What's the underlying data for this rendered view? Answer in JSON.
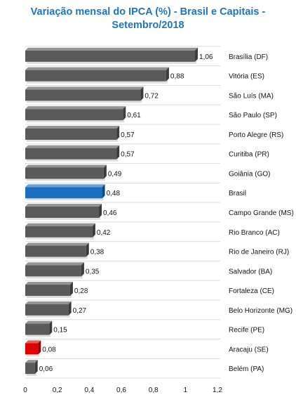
{
  "chart_data": {
    "type": "bar",
    "orientation": "horizontal",
    "title_line1": "Variação mensal do IPCA (%) - Brasil e Capitais -",
    "title_line2": "Setembro/2018",
    "categories": [
      "Brasília (DF)",
      "Vitória (ES)",
      "São Luís (MA)",
      "São Paulo (SP)",
      "Porto Alegre (RS)",
      "Curitiba (PR)",
      "Goiânia (GO)",
      "Brasil",
      "Campo Grande (MS)",
      "Rio Branco (AC)",
      "Rio de Janeiro (RJ)",
      "Salvador (BA)",
      "Fortaleza (CE)",
      "Belo Horizonte (MG)",
      "Recife (PE)",
      "Aracaju (SE)",
      "Belém (PA)"
    ],
    "values": [
      1.06,
      0.88,
      0.72,
      0.61,
      0.57,
      0.57,
      0.49,
      0.48,
      0.46,
      0.42,
      0.38,
      0.35,
      0.28,
      0.27,
      0.15,
      0.08,
      0.06
    ],
    "value_labels": [
      "1,06",
      "0,88",
      "0,72",
      "0,61",
      "0,57",
      "0,57",
      "0,49",
      "0,48",
      "0,46",
      "0,42",
      "0,38",
      "0,35",
      "0,28",
      "0,27",
      "0,15",
      "0,08",
      "0,06"
    ],
    "bar_colors": [
      "#5a5a5a",
      "#5a5a5a",
      "#5a5a5a",
      "#5a5a5a",
      "#5a5a5a",
      "#5a5a5a",
      "#5a5a5a",
      "#1a6fc0",
      "#5a5a5a",
      "#5a5a5a",
      "#5a5a5a",
      "#5a5a5a",
      "#5a5a5a",
      "#5a5a5a",
      "#5a5a5a",
      "#e00000",
      "#5a5a5a"
    ],
    "xlim": [
      0,
      1.2
    ],
    "x_ticks": [
      0,
      0.2,
      0.4,
      0.6,
      0.8,
      1,
      1.2
    ],
    "x_tick_labels": [
      "0",
      "0,2",
      "0,4",
      "0,6",
      "0,8",
      "1",
      "1,2"
    ],
    "grid": true,
    "legend": "none",
    "title_color": "#1f74bd"
  }
}
